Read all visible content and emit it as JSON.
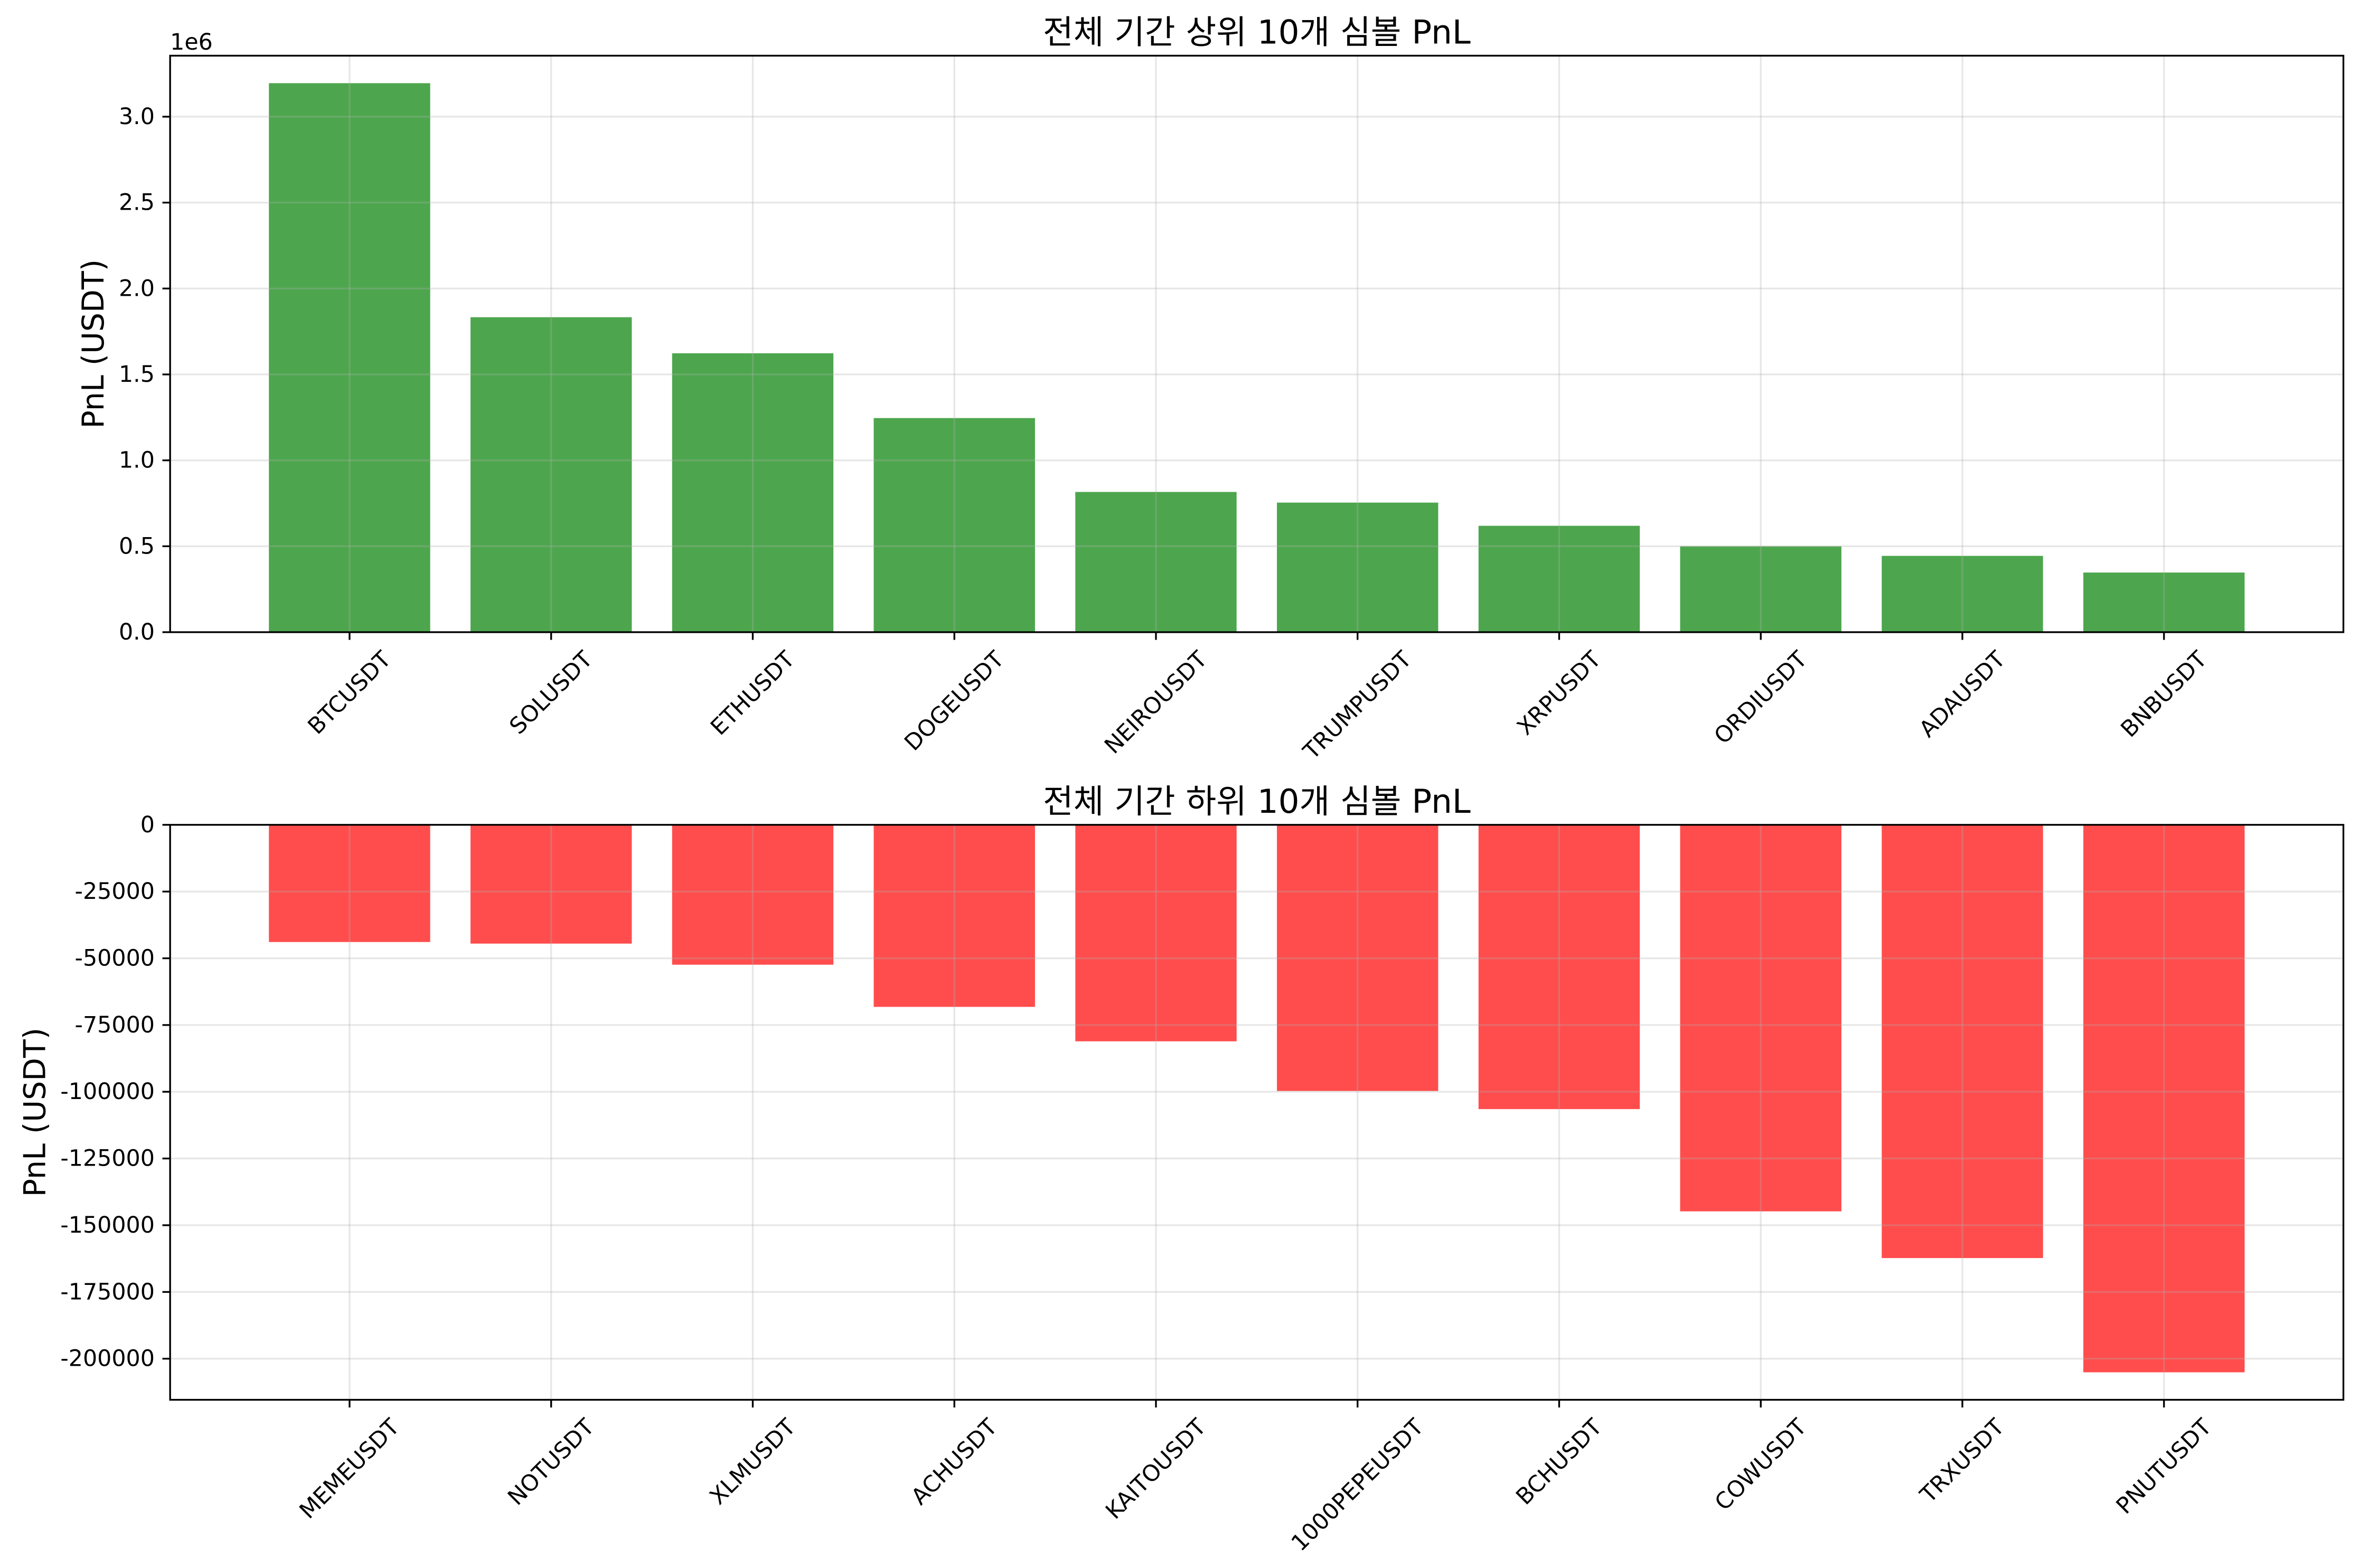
{
  "chart_data": [
    {
      "type": "bar",
      "title": "전체 기간 상위 10개 심볼 PnL",
      "ylabel": "PnL (USDT)",
      "offset_text": "1e6",
      "categories": [
        "BTCUSDT",
        "SOLUSDT",
        "ETHUSDT",
        "DOGEUSDT",
        "NEIROUSDT",
        "TRUMPUSDT",
        "XRPUSDT",
        "ORDIUSDT",
        "ADAUSDT",
        "BNBUSDT"
      ],
      "values": [
        3195000,
        1833000,
        1623000,
        1246000,
        816000,
        754000,
        619000,
        500000,
        444000,
        347000
      ],
      "ylim": [
        0,
        3355000
      ],
      "yticks": [
        0,
        500000,
        1000000,
        1500000,
        2000000,
        2500000,
        3000000
      ],
      "ytick_labels": [
        "0.0",
        "0.5",
        "1.0",
        "1.5",
        "2.0",
        "2.5",
        "3.0"
      ],
      "bar_color": "#4DA64D",
      "grid": true
    },
    {
      "type": "bar",
      "title": "전체 기간 하위 10개 심볼 PnL",
      "ylabel": "PnL (USDT)",
      "categories": [
        "MEMEUSDT",
        "NOTUSDT",
        "XLMUSDT",
        "ACHUSDT",
        "KAITOUSDT",
        "1000PEPEUSDT",
        "BCHUSDT",
        "COWUSDT",
        "TRXUSDT",
        "PNUTUSDT"
      ],
      "values": [
        -43900,
        -44500,
        -52400,
        -68200,
        -81100,
        -99700,
        -106500,
        -144800,
        -162300,
        -205100
      ],
      "ylim": [
        -215400,
        0
      ],
      "yticks": [
        0,
        -25000,
        -50000,
        -75000,
        -100000,
        -125000,
        -150000,
        -175000,
        -200000
      ],
      "ytick_labels": [
        "0",
        "-25000",
        "-50000",
        "-75000",
        "-100000",
        "-125000",
        "-150000",
        "-175000",
        "-200000"
      ],
      "bar_color": "#FF4D4D",
      "grid": true
    }
  ]
}
